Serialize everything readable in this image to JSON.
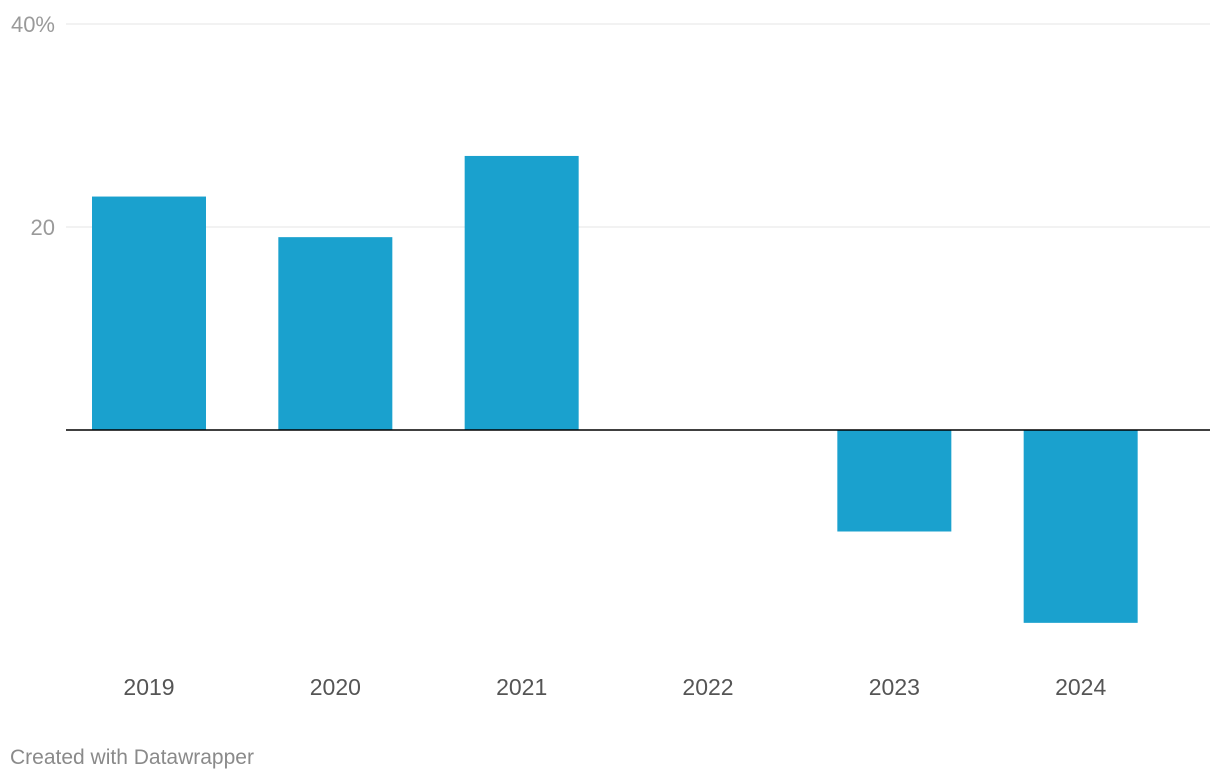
{
  "chart_data": {
    "type": "bar",
    "categories": [
      "2019",
      "2020",
      "2021",
      "2022",
      "2023",
      "2024"
    ],
    "values": [
      23,
      19,
      27,
      0,
      -10,
      -19
    ],
    "ylim": [
      -19,
      40
    ],
    "y_ticks": [
      {
        "value": 40,
        "label": "40%"
      },
      {
        "value": 20,
        "label": "20"
      }
    ],
    "grid": true,
    "bar_color": "#1aa1ce",
    "zero_line_color": "#000000",
    "grid_color": "#e4e4e4"
  },
  "footer": {
    "credit": "Created with Datawrapper"
  }
}
